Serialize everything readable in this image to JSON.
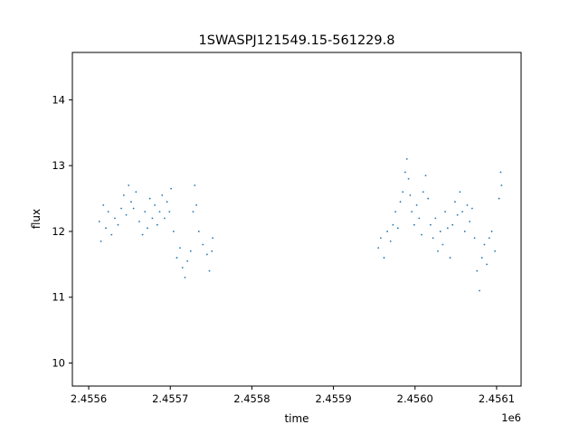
{
  "chart_data": {
    "type": "scatter",
    "title": "1SWASPJ121549.15-561229.8",
    "xlabel": "time",
    "ylabel": "flux",
    "x_offset_label": "1e6",
    "xlim": [
      2.45558,
      2.45613
    ],
    "ylim": [
      9.65,
      14.72
    ],
    "xticks": [
      2.4556,
      2.4557,
      2.4558,
      2.4559,
      2.456,
      2.4561
    ],
    "xtick_labels": [
      "2.4556",
      "2.4557",
      "2.4558",
      "2.4559",
      "2.4560",
      "2.4561"
    ],
    "yticks": [
      10,
      11,
      12,
      13,
      14
    ],
    "ytick_labels": [
      "10",
      "11",
      "12",
      "13",
      "14"
    ],
    "grid": false,
    "marker_color": "#1f77b4",
    "series": [
      {
        "points": [
          [
            2.455613,
            12.15
          ],
          [
            2.455615,
            11.85
          ],
          [
            2.455618,
            12.4
          ],
          [
            2.455621,
            12.05
          ],
          [
            2.455624,
            12.3
          ],
          [
            2.455628,
            11.95
          ],
          [
            2.455632,
            12.2
          ],
          [
            2.455636,
            12.1
          ],
          [
            2.45564,
            12.35
          ],
          [
            2.455643,
            12.55
          ],
          [
            2.455646,
            12.25
          ],
          [
            2.455649,
            12.7
          ],
          [
            2.455652,
            12.45
          ],
          [
            2.455655,
            12.35
          ],
          [
            2.455658,
            12.6
          ],
          [
            2.455662,
            12.15
          ],
          [
            2.455666,
            11.95
          ],
          [
            2.455669,
            12.3
          ],
          [
            2.455672,
            12.05
          ],
          [
            2.455675,
            12.5
          ],
          [
            2.455678,
            12.2
          ],
          [
            2.455681,
            12.4
          ],
          [
            2.455684,
            12.1
          ],
          [
            2.455687,
            12.3
          ],
          [
            2.45569,
            12.55
          ],
          [
            2.455693,
            12.2
          ],
          [
            2.455696,
            12.45
          ],
          [
            2.455699,
            12.3
          ],
          [
            2.455701,
            12.65
          ],
          [
            2.455704,
            12.0
          ],
          [
            2.455708,
            11.6
          ],
          [
            2.455712,
            11.75
          ],
          [
            2.455715,
            11.45
          ],
          [
            2.455718,
            11.3
          ],
          [
            2.455721,
            11.55
          ],
          [
            2.455725,
            11.7
          ],
          [
            2.455728,
            12.3
          ],
          [
            2.45573,
            12.7
          ],
          [
            2.455732,
            12.4
          ],
          [
            2.455735,
            12.0
          ],
          [
            2.45574,
            11.8
          ],
          [
            2.455745,
            11.65
          ],
          [
            2.455748,
            11.4
          ],
          [
            2.455751,
            11.7
          ],
          [
            2.455752,
            11.9
          ],
          [
            2.455955,
            11.75
          ],
          [
            2.455958,
            11.9
          ],
          [
            2.455962,
            11.6
          ],
          [
            2.455966,
            12.0
          ],
          [
            2.45597,
            11.85
          ],
          [
            2.455973,
            12.1
          ],
          [
            2.455976,
            12.3
          ],
          [
            2.455979,
            12.05
          ],
          [
            2.455982,
            12.45
          ],
          [
            2.455985,
            12.6
          ],
          [
            2.455988,
            12.9
          ],
          [
            2.45599,
            13.1
          ],
          [
            2.455992,
            12.8
          ],
          [
            2.455994,
            12.55
          ],
          [
            2.455996,
            12.3
          ],
          [
            2.455999,
            12.1
          ],
          [
            2.456002,
            12.4
          ],
          [
            2.456005,
            12.2
          ],
          [
            2.456008,
            11.95
          ],
          [
            2.45601,
            12.6
          ],
          [
            2.456013,
            12.85
          ],
          [
            2.456016,
            12.5
          ],
          [
            2.456019,
            12.1
          ],
          [
            2.456022,
            11.9
          ],
          [
            2.456025,
            12.2
          ],
          [
            2.456028,
            11.7
          ],
          [
            2.456031,
            12.0
          ],
          [
            2.456034,
            11.8
          ],
          [
            2.456037,
            12.3
          ],
          [
            2.45604,
            12.05
          ],
          [
            2.456043,
            11.6
          ],
          [
            2.456046,
            12.1
          ],
          [
            2.456049,
            12.45
          ],
          [
            2.456052,
            12.25
          ],
          [
            2.456055,
            12.6
          ],
          [
            2.456058,
            12.3
          ],
          [
            2.456061,
            12.0
          ],
          [
            2.456064,
            12.4
          ],
          [
            2.456067,
            12.15
          ],
          [
            2.45607,
            12.35
          ],
          [
            2.456073,
            11.9
          ],
          [
            2.456076,
            11.4
          ],
          [
            2.456079,
            11.1
          ],
          [
            2.456082,
            11.6
          ],
          [
            2.456085,
            11.8
          ],
          [
            2.456088,
            11.5
          ],
          [
            2.456091,
            11.9
          ],
          [
            2.456094,
            12.0
          ],
          [
            2.456098,
            11.7
          ],
          [
            2.456103,
            12.5
          ],
          [
            2.456105,
            12.9
          ],
          [
            2.456106,
            12.7
          ]
        ]
      }
    ]
  }
}
